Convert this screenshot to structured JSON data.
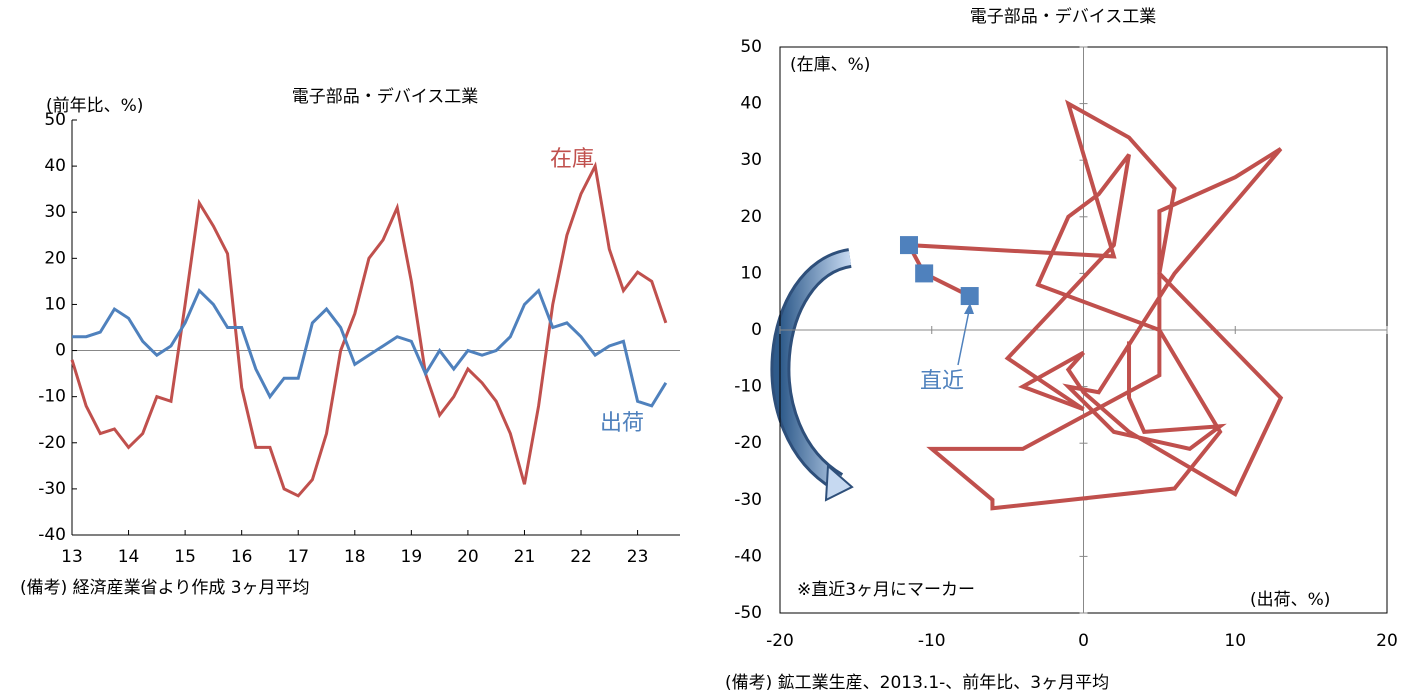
{
  "chart_data": [
    {
      "type": "line",
      "title": "電子部品・デバイス工業",
      "y_label": "(前年比、%)",
      "note": "(備考) 経済産業省より作成 3ヶ月平均",
      "x": [
        13,
        13.25,
        13.5,
        13.75,
        14,
        14.25,
        14.5,
        14.75,
        15,
        15.25,
        15.5,
        15.75,
        16,
        16.25,
        16.5,
        16.75,
        17,
        17.25,
        17.5,
        17.75,
        18,
        18.25,
        18.5,
        18.75,
        19,
        19.25,
        19.5,
        19.75,
        20,
        20.25,
        20.5,
        20.75,
        21,
        21.25,
        21.5,
        21.75,
        22,
        22.25,
        22.5,
        22.75,
        23,
        23.25,
        23.5
      ],
      "xlim": [
        13,
        23.75
      ],
      "ylim": [
        -40,
        50
      ],
      "xticks": [
        13,
        14,
        15,
        16,
        17,
        18,
        19,
        20,
        21,
        22,
        23
      ],
      "yticks": [
        -40,
        -30,
        -20,
        -10,
        0,
        10,
        20,
        30,
        40,
        50
      ],
      "series": [
        {
          "name": "在庫",
          "color": "#c0504d",
          "values": [
            -2,
            -12,
            -18,
            -17,
            -21,
            -18,
            -10,
            -11,
            10,
            32,
            27,
            21,
            -8,
            -21,
            -21,
            -30,
            -31.5,
            -28,
            -18,
            0,
            8,
            20,
            24,
            31,
            15,
            -5,
            -14,
            -10,
            -4,
            -7,
            -11,
            -18,
            -29,
            -12,
            10,
            25,
            34,
            40,
            22,
            13,
            17,
            15,
            6
          ]
        },
        {
          "name": "出荷",
          "color": "#4f81bd",
          "values": [
            3,
            3,
            4,
            9,
            7,
            2,
            -1,
            1,
            6,
            13,
            10,
            5,
            5,
            -4,
            -10,
            -6,
            -6,
            6,
            9,
            5,
            -3,
            -1,
            1,
            3,
            2,
            -5,
            0,
            -4,
            0,
            -1,
            0,
            3,
            10,
            13,
            5,
            6,
            3,
            -1,
            1,
            2,
            -11,
            -12,
            -7
          ]
        }
      ]
    },
    {
      "type": "scatter",
      "title": "電子部品・デバイス工業",
      "x_label": "(出荷、%)",
      "y_label": "(在庫、%)",
      "annotation": "※直近3ヶ月にマーカー",
      "callout": "直近",
      "marker_count": 3,
      "note": "(備考) 鉱工業生産、2013.1-、前年比、3ヶ月平均",
      "xlim": [
        -20,
        20
      ],
      "ylim": [
        -50,
        50
      ],
      "xticks": [
        -20,
        -10,
        0,
        10,
        20
      ],
      "yticks": [
        -50,
        -40,
        -30,
        -20,
        -10,
        0,
        10,
        20,
        30,
        40,
        50
      ],
      "series": [
        {
          "color": "#c0504d",
          "marker_color": "#4f81bd",
          "x": [
            3,
            3,
            4,
            9,
            7,
            2,
            -1,
            1,
            6,
            13,
            10,
            5,
            5,
            -4,
            -10,
            -6,
            -6,
            6,
            9,
            5,
            -3,
            -1,
            1,
            3,
            2,
            -5,
            0,
            -4,
            0,
            -1,
            0,
            3,
            10,
            13,
            5,
            6,
            3,
            -1,
            1,
            2,
            -11.5,
            -10.5,
            -7.5
          ],
          "values": [
            -2,
            -12,
            -18,
            -17,
            -21,
            -18,
            -10,
            -11,
            10,
            32,
            27,
            21,
            -8,
            -21,
            -21,
            -30,
            -31.5,
            -28,
            -18,
            0,
            8,
            20,
            24,
            31,
            15,
            -5,
            -14,
            -10,
            -4,
            -7,
            -11,
            -18,
            -29,
            -12,
            10,
            25,
            34,
            40,
            22,
            13,
            15,
            10,
            6
          ]
        }
      ]
    }
  ]
}
